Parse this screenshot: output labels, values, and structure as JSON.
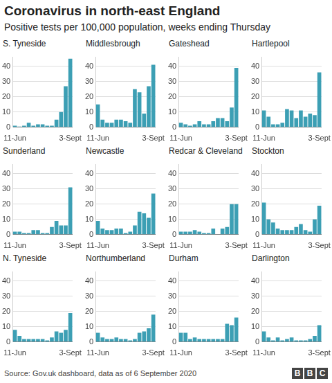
{
  "title": "Coronavirus in north-east England",
  "subtitle": "Positive tests per 100,000 population, weeks ending Thursday",
  "source": "Source: Gov.uk dashboard, data as of 6 September 2020",
  "logo": "BBC",
  "chart_data": [
    {
      "type": "bar",
      "title": "S. Tyneside",
      "categories": [
        "11-Jun",
        null,
        null,
        null,
        null,
        null,
        null,
        null,
        null,
        null,
        null,
        null,
        "3-Sept"
      ],
      "values": [
        1,
        0.5,
        1,
        3,
        1,
        2,
        2,
        1,
        1,
        5,
        10,
        27,
        45
      ],
      "color": "#3c9fb4",
      "ylim": [
        0,
        46
      ],
      "yticks": [
        0,
        10,
        20,
        30,
        40
      ],
      "grid": true
    },
    {
      "type": "bar",
      "title": "Middlesbrough",
      "categories": [
        "11-Jun",
        null,
        null,
        null,
        null,
        null,
        null,
        null,
        null,
        null,
        null,
        null,
        "3-Sept"
      ],
      "values": [
        15,
        5,
        3,
        3,
        5,
        5,
        4,
        3,
        25,
        23,
        9,
        27,
        41
      ],
      "color": "#3c9fb4",
      "ylim": [
        0,
        46
      ],
      "yticks": [
        0,
        10,
        20,
        30,
        40
      ],
      "grid": true
    },
    {
      "type": "bar",
      "title": "Gateshead",
      "categories": [
        "11-Jun",
        null,
        null,
        null,
        null,
        null,
        null,
        null,
        null,
        null,
        null,
        null,
        "3-Sept"
      ],
      "values": [
        3,
        2,
        1,
        2,
        4,
        2,
        2,
        4,
        6,
        6,
        4,
        13,
        39
      ],
      "color": "#3c9fb4",
      "ylim": [
        0,
        46
      ],
      "yticks": [
        0,
        10,
        20,
        30,
        40
      ],
      "grid": true
    },
    {
      "type": "bar",
      "title": "Hartlepool",
      "categories": [
        "11-Jun",
        null,
        null,
        null,
        null,
        null,
        null,
        null,
        null,
        null,
        null,
        null,
        "3-Sept"
      ],
      "values": [
        11,
        7,
        2,
        2,
        3,
        12,
        11,
        6,
        11,
        7,
        9,
        8,
        36
      ],
      "color": "#3c9fb4",
      "ylim": [
        0,
        46
      ],
      "yticks": [
        0,
        10,
        20,
        30,
        40
      ],
      "grid": true
    },
    {
      "type": "bar",
      "title": "Sunderland",
      "categories": [
        "11-Jun",
        null,
        null,
        null,
        null,
        null,
        null,
        null,
        null,
        null,
        null,
        null,
        "3-Sept"
      ],
      "values": [
        2,
        2,
        1,
        1,
        3,
        3,
        1,
        1,
        5,
        9,
        6,
        6,
        31
      ],
      "color": "#3c9fb4",
      "ylim": [
        0,
        46
      ],
      "yticks": [
        0,
        10,
        20,
        30,
        40
      ],
      "grid": true
    },
    {
      "type": "bar",
      "title": "Newcastle",
      "categories": [
        "11-Jun",
        null,
        null,
        null,
        null,
        null,
        null,
        null,
        null,
        null,
        null,
        null,
        "3-Sept"
      ],
      "values": [
        9,
        4,
        3,
        3,
        4,
        4,
        1,
        2,
        6,
        15,
        14,
        11,
        27
      ],
      "color": "#3c9fb4",
      "ylim": [
        0,
        46
      ],
      "yticks": [
        0,
        10,
        20,
        30,
        40
      ],
      "grid": true
    },
    {
      "type": "bar",
      "title": "Redcar & Cleveland",
      "categories": [
        "11-Jun",
        null,
        null,
        null,
        null,
        null,
        null,
        null,
        null,
        null,
        null,
        null,
        "3-Sept"
      ],
      "values": [
        2,
        2,
        2,
        3,
        2,
        1,
        1,
        4,
        0,
        4,
        5,
        20,
        20
      ],
      "color": "#3c9fb4",
      "ylim": [
        0,
        46
      ],
      "yticks": [
        0,
        10,
        20,
        30,
        40
      ],
      "grid": true
    },
    {
      "type": "bar",
      "title": "Stockton",
      "categories": [
        "11-Jun",
        null,
        null,
        null,
        null,
        null,
        null,
        null,
        null,
        null,
        null,
        null,
        "3-Sept"
      ],
      "values": [
        21,
        10,
        8,
        4,
        3,
        3,
        3,
        5,
        7,
        3,
        2,
        10,
        19
      ],
      "color": "#3c9fb4",
      "ylim": [
        0,
        46
      ],
      "yticks": [
        0,
        10,
        20,
        30,
        40
      ],
      "grid": true
    },
    {
      "type": "bar",
      "title": "N. Tyneside",
      "categories": [
        "11-Jun",
        null,
        null,
        null,
        null,
        null,
        null,
        null,
        null,
        null,
        null,
        null,
        "3-Sept"
      ],
      "values": [
        8,
        4,
        2,
        2,
        2,
        2,
        2,
        1,
        3,
        7,
        6,
        8,
        19
      ],
      "color": "#3c9fb4",
      "ylim": [
        0,
        46
      ],
      "yticks": [
        0,
        10,
        20,
        30,
        40
      ],
      "grid": true
    },
    {
      "type": "bar",
      "title": "Northumberland",
      "categories": [
        "11-Jun",
        null,
        null,
        null,
        null,
        null,
        null,
        null,
        null,
        null,
        null,
        null,
        "3-Sept"
      ],
      "values": [
        6,
        3,
        2,
        2,
        3,
        2,
        2,
        1,
        2,
        6,
        7,
        9,
        18
      ],
      "color": "#3c9fb4",
      "ylim": [
        0,
        46
      ],
      "yticks": [
        0,
        10,
        20,
        30,
        40
      ],
      "grid": true
    },
    {
      "type": "bar",
      "title": "Durham",
      "categories": [
        "11-Jun",
        null,
        null,
        null,
        null,
        null,
        null,
        null,
        null,
        null,
        null,
        null,
        "3-Sept"
      ],
      "values": [
        6,
        6,
        2,
        3,
        2,
        2,
        2,
        2,
        2,
        2,
        12,
        11,
        16
      ],
      "color": "#3c9fb4",
      "ylim": [
        0,
        46
      ],
      "yticks": [
        0,
        10,
        20,
        30,
        40
      ],
      "grid": true
    },
    {
      "type": "bar",
      "title": "Darlington",
      "categories": [
        "11-Jun",
        null,
        null,
        null,
        null,
        null,
        null,
        null,
        null,
        null,
        null,
        null,
        "3-Sept"
      ],
      "values": [
        7,
        3,
        1,
        3,
        1,
        2,
        3,
        1,
        1,
        1,
        2,
        4,
        11
      ],
      "color": "#3c9fb4",
      "ylim": [
        0,
        46
      ],
      "yticks": [
        0,
        10,
        20,
        30,
        40
      ],
      "grid": true
    }
  ]
}
